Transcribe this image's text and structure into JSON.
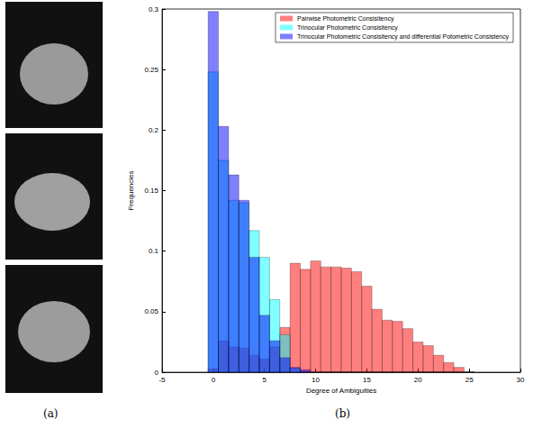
{
  "panel_labels": [
    "(a)",
    "(b)"
  ],
  "chart_data": {
    "type": "histogram",
    "x_label": "Degree of Ambiguities",
    "y_label": "Frequencies",
    "bins": [
      -0.5,
      0.5,
      1.5,
      2.5,
      3.5,
      4.5,
      5.5,
      6.5,
      7.5,
      8.5,
      9.5,
      10.5,
      11.5,
      12.5,
      13.5,
      14.5,
      15.5,
      16.5,
      17.5,
      18.5,
      19.5,
      20.5,
      21.5,
      22.5,
      23.5,
      24.5,
      25.5
    ],
    "series": [
      {
        "name": "Pairwise Photometric Consisitency",
        "color": "#ff0000",
        "values": [
          0.003,
          0.026,
          0.021,
          0.02,
          0.014,
          0.011,
          0.021,
          0.037,
          0.09,
          0.085,
          0.092,
          0.087,
          0.087,
          0.086,
          0.083,
          0.071,
          0.052,
          0.043,
          0.042,
          0.036,
          0.025,
          0.022,
          0.014,
          0.008,
          0.004,
          0
        ]
      },
      {
        "name": "Trinocular Photometric Consisitency",
        "color": "#00ffff",
        "values": [
          0.248,
          0.175,
          0.142,
          0.14,
          0.117,
          0.095,
          0.06,
          0.031,
          0.003,
          0,
          0,
          0,
          0,
          0,
          0,
          0,
          0,
          0,
          0,
          0,
          0,
          0,
          0,
          0,
          0,
          0
        ]
      },
      {
        "name": "Trinocular Photometric Consisitency and differential Potometric Consistency",
        "color": "#0000ff",
        "values": [
          0.298,
          0.203,
          0.163,
          0.142,
          0.095,
          0.047,
          0.026,
          0.012,
          0.004,
          0.002,
          0,
          0,
          0,
          0,
          0,
          0,
          0,
          0,
          0,
          0,
          0,
          0,
          0,
          0,
          0,
          0
        ]
      }
    ],
    "xlim": [
      -5,
      30
    ],
    "xticks": [
      -5,
      0,
      5,
      10,
      15,
      20,
      25,
      30
    ],
    "ylim": [
      0,
      0.3
    ],
    "yticks": [
      0,
      0.05,
      0.1,
      0.15,
      0.2,
      0.25,
      0.3
    ],
    "grid": false,
    "legend": "upper right"
  }
}
